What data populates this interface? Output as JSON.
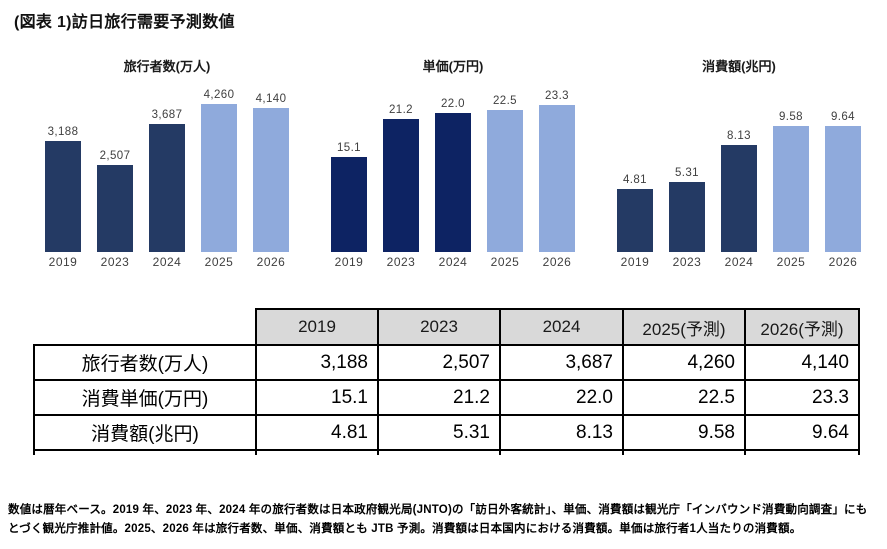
{
  "title": "(図表 1)訪日旅行需要予測数値",
  "colors": {
    "actual_bar_navy": "#243a64",
    "actual_bar_deep_blue": "#0d2363",
    "forecast_bar_light_blue": "#8faadc",
    "table_header_bg": "#d9d9d9",
    "chart_text_gray": "#3f3f3f"
  },
  "chart_data": [
    {
      "type": "bar",
      "title": "旅行者数(万人)",
      "categories": [
        "2019",
        "2023",
        "2024",
        "2025",
        "2026"
      ],
      "values": [
        3188,
        2507,
        3687,
        4260,
        4140
      ],
      "labels": [
        "3,188",
        "2,507",
        "3,687",
        "4,260",
        "4,140"
      ],
      "ylim": [
        0,
        4600
      ],
      "grid": false,
      "legend": "none",
      "forecast_from_index": 3,
      "colors": {
        "actual": "#243a64",
        "forecast": "#8faadc"
      }
    },
    {
      "type": "bar",
      "title": "単価(万円)",
      "categories": [
        "2019",
        "2023",
        "2024",
        "2025",
        "2026"
      ],
      "values": [
        15.1,
        21.2,
        22.0,
        22.5,
        23.3
      ],
      "labels": [
        "15.1",
        "21.2",
        "22.0",
        "22.5",
        "23.3"
      ],
      "ylim": [
        0,
        25.4
      ],
      "grid": false,
      "legend": "none",
      "forecast_from_index": 3,
      "colors": {
        "actual": "#0d2363",
        "forecast": "#8faadc"
      }
    },
    {
      "type": "bar",
      "title": "消費額(兆円)",
      "categories": [
        "2019",
        "2023",
        "2024",
        "2025",
        "2026"
      ],
      "values": [
        4.81,
        5.31,
        8.13,
        9.58,
        9.64
      ],
      "labels": [
        "4.81",
        "5.31",
        "8.13",
        "9.58",
        "9.64"
      ],
      "ylim": [
        0,
        12.2
      ],
      "grid": false,
      "legend": "none",
      "forecast_from_index": 3,
      "colors": {
        "actual": "#243a64",
        "forecast": "#8faadc"
      }
    }
  ],
  "table": {
    "header": [
      "",
      "2019",
      "2023",
      "2024",
      "2025(予測)",
      "2026(予測)"
    ],
    "rows": [
      {
        "label": "旅行者数(万人)",
        "values": [
          "3,188",
          "2,507",
          "3,687",
          "4,260",
          "4,140"
        ]
      },
      {
        "label": "消費単価(万円)",
        "values": [
          "15.1",
          "21.2",
          "22.0",
          "22.5",
          "23.3"
        ]
      },
      {
        "label": "消費額(兆円)",
        "values": [
          "4.81",
          "5.31",
          "8.13",
          "9.58",
          "9.64"
        ]
      }
    ]
  },
  "footnote": "数値は暦年ベース。2019 年、2023 年、2024 年の旅行者数は日本政府観光局(JNTO)の「訪日外客統計」、単価、消費額は観光庁「インバウンド消費動向調査」にもとづく観光庁推計値。2025、2026 年は旅行者数、単価、消費額とも JTB 予測。消費額は日本国内における消費額。単価は旅行者1人当たりの消費額。"
}
